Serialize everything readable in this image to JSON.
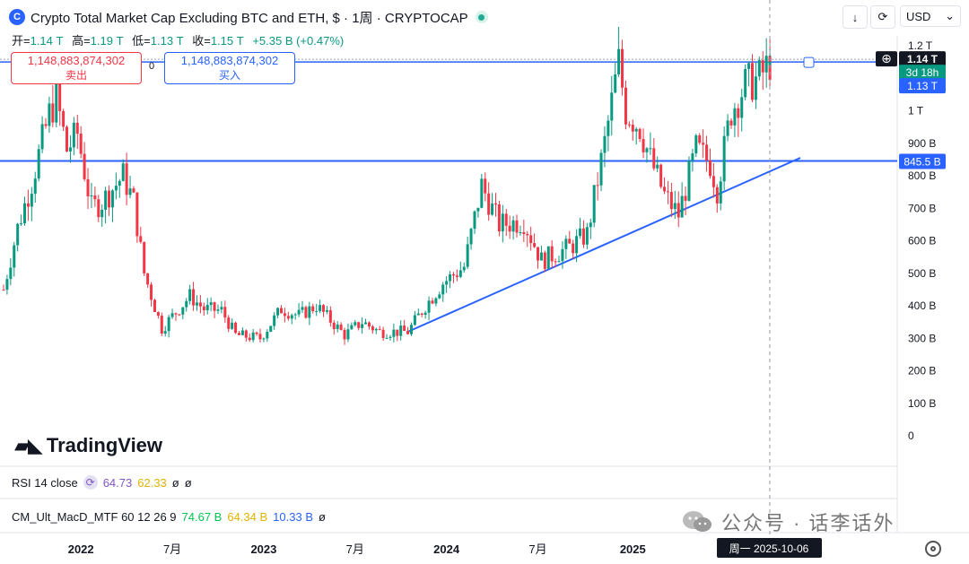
{
  "header": {
    "title": "Crypto Total Market Cap Excluding BTC and ETH, $ · 1周 · CRYPTOCAP",
    "logo_glyph": "C"
  },
  "ohlc": {
    "open_label": "开=",
    "open": "1.14 T",
    "high_label": "高=",
    "high": "1.19 T",
    "low_label": "低=",
    "low": "1.13 T",
    "close_label": "收=",
    "close": "1.15 T",
    "change": "+5.35 B (+0.47%)"
  },
  "toolbar": {
    "down_icon": "↓",
    "screenshot_icon": "⟳",
    "currency": "USD",
    "currency_chevron": "⌄"
  },
  "order": {
    "sell_price": "1,148,883,874,302",
    "sell_label": "卖出",
    "spread": "0",
    "buy_price": "1,148,883,874,302",
    "buy_label": "买入"
  },
  "indicators": {
    "rsi": {
      "name": "RSI 14 close",
      "v1": "64.73",
      "v2": "62.33",
      "v3": "ø",
      "v4": "ø"
    },
    "macd": {
      "name": "CM_Ult_MacD_MTF 60 12 26 9",
      "v1": "74.67 B",
      "v2": "64.34 B",
      "v3": "10.33 B",
      "v4": "ø"
    }
  },
  "watermark": "TradingView",
  "sticker_text": "公众号 · 话李话外",
  "colors": {
    "up": "#089981",
    "down": "#f23645",
    "line": "#2962ff",
    "rsi": "#7e57c2",
    "rsi_ma": "#f7c948",
    "macd1": "#00e676",
    "macd2": "#f7c948",
    "macd3": "#2962ff"
  },
  "chart_data": {
    "type": "candlestick",
    "x_labels": [
      "2022",
      "7月",
      "2023",
      "7月",
      "2024",
      "7月",
      "2025"
    ],
    "crosshair_date": "周一 2025-10-06",
    "y_ticks": [
      0,
      100,
      200,
      300,
      400,
      500,
      600,
      700,
      800,
      900,
      1000,
      1200
    ],
    "y_tick_labels": [
      "0",
      "100 B",
      "200 B",
      "300 B",
      "400 B",
      "500 B",
      "600 B",
      "700 B",
      "800 B",
      "900 B",
      "1 T",
      "1.2 T"
    ],
    "y_unit": "B",
    "price_tags": [
      {
        "text": "1.14 T",
        "style": "dark"
      },
      {
        "text": "3d 18h",
        "style": "green"
      },
      {
        "text": "1.13 T",
        "style": "blue"
      },
      {
        "text": "845.5 B",
        "style": "blue"
      }
    ],
    "horizontal_levels": [
      845.5,
      1150
    ],
    "trendline": {
      "start": {
        "date": "2023-10-16",
        "value": 320
      },
      "end": {
        "date": "2025-10-13",
        "value": 855
      }
    },
    "close_series_weekly": [
      {
        "t": "2021-08-02",
        "v": 450
      },
      {
        "t": "2021-08-30",
        "v": 640
      },
      {
        "t": "2021-09-27",
        "v": 780
      },
      {
        "t": "2021-11-01",
        "v": 990
      },
      {
        "t": "2021-11-15",
        "v": 1040
      },
      {
        "t": "2021-12-06",
        "v": 880
      },
      {
        "t": "2021-12-27",
        "v": 930
      },
      {
        "t": "2022-01-24",
        "v": 700
      },
      {
        "t": "2022-02-14",
        "v": 720
      },
      {
        "t": "2022-03-28",
        "v": 800
      },
      {
        "t": "2022-04-18",
        "v": 720
      },
      {
        "t": "2022-05-09",
        "v": 500
      },
      {
        "t": "2022-06-13",
        "v": 330
      },
      {
        "t": "2022-07-11",
        "v": 380
      },
      {
        "t": "2022-08-08",
        "v": 430
      },
      {
        "t": "2022-09-05",
        "v": 390
      },
      {
        "t": "2022-10-10",
        "v": 385
      },
      {
        "t": "2022-11-07",
        "v": 310
      },
      {
        "t": "2022-12-26",
        "v": 300
      },
      {
        "t": "2023-02-06",
        "v": 390
      },
      {
        "t": "2023-03-13",
        "v": 370
      },
      {
        "t": "2023-04-17",
        "v": 400
      },
      {
        "t": "2023-06-12",
        "v": 310
      },
      {
        "t": "2023-07-17",
        "v": 350
      },
      {
        "t": "2023-08-21",
        "v": 320
      },
      {
        "t": "2023-10-16",
        "v": 320
      },
      {
        "t": "2023-11-20",
        "v": 400
      },
      {
        "t": "2023-12-25",
        "v": 470
      },
      {
        "t": "2024-02-05",
        "v": 520
      },
      {
        "t": "2024-03-11",
        "v": 770
      },
      {
        "t": "2024-04-15",
        "v": 650
      },
      {
        "t": "2024-06-03",
        "v": 660
      },
      {
        "t": "2024-07-08",
        "v": 540
      },
      {
        "t": "2024-08-05",
        "v": 560
      },
      {
        "t": "2024-09-02",
        "v": 580
      },
      {
        "t": "2024-10-07",
        "v": 620
      },
      {
        "t": "2024-11-11",
        "v": 900
      },
      {
        "t": "2024-12-09",
        "v": 1150
      },
      {
        "t": "2024-12-23",
        "v": 1000
      },
      {
        "t": "2025-01-20",
        "v": 950
      },
      {
        "t": "2025-02-10",
        "v": 850
      },
      {
        "t": "2025-03-10",
        "v": 740
      },
      {
        "t": "2025-04-07",
        "v": 680
      },
      {
        "t": "2025-05-12",
        "v": 880
      },
      {
        "t": "2025-06-09",
        "v": 840
      },
      {
        "t": "2025-06-23",
        "v": 760
      },
      {
        "t": "2025-07-21",
        "v": 1000
      },
      {
        "t": "2025-08-18",
        "v": 1080
      },
      {
        "t": "2025-09-15",
        "v": 1100
      },
      {
        "t": "2025-10-06",
        "v": 1150
      }
    ],
    "ohlc_last": {
      "open": 1140,
      "high": 1190,
      "low": 1130,
      "close": 1150
    }
  }
}
